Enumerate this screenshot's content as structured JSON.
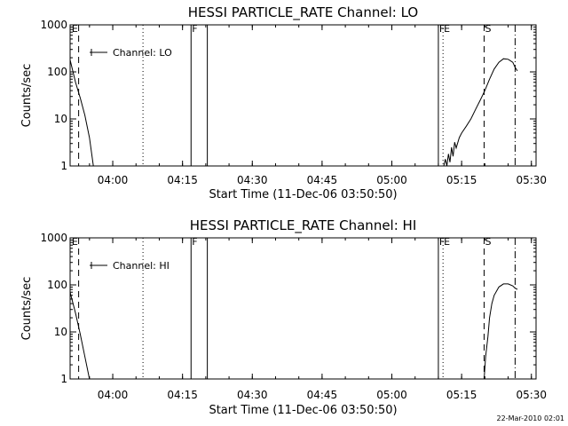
{
  "footer": {
    "date": "22-Mar-2010 02:01"
  },
  "chart_data": [
    {
      "type": "line",
      "title": "HESSI PARTICLE_RATE Channel: LO",
      "xlabel": "Start Time (11-Dec-06 03:50:50)",
      "ylabel": "Counts/sec",
      "yscale": "log",
      "xlim": [
        "03:50:50",
        "05:31:00"
      ],
      "ylim": [
        1,
        1000
      ],
      "xticks": [
        "04:00",
        "04:15",
        "04:30",
        "04:45",
        "05:00",
        "05:15",
        "05:30"
      ],
      "yticks": [
        "1",
        "10",
        "100",
        "1000"
      ],
      "legend": {
        "label": "Channel: LO",
        "placement": "top-left"
      },
      "markers": [
        {
          "time": "03:51:00",
          "style": "text",
          "label": "E"
        },
        {
          "time": "03:52:40",
          "style": "dashed",
          "label": ""
        },
        {
          "time": "04:06:30",
          "style": "dotted",
          "label": ""
        },
        {
          "time": "04:16:50",
          "style": "solid",
          "label": "F"
        },
        {
          "time": "04:20:20",
          "style": "solid",
          "label": ""
        },
        {
          "time": "05:10:00",
          "style": "solid",
          "label": "F"
        },
        {
          "time": "05:11:00",
          "style": "dotted",
          "label": "E"
        },
        {
          "time": "05:19:50",
          "style": "dashed",
          "label": "S"
        },
        {
          "time": "05:26:30",
          "style": "dashdot",
          "label": ""
        }
      ],
      "series": [
        {
          "name": "Channel: LO",
          "segments": [
            [
              [
                "03:50:50",
                180
              ],
              [
                "03:52:00",
                60
              ],
              [
                "03:53:00",
                28
              ],
              [
                "03:54:00",
                12
              ],
              [
                "03:55:00",
                4
              ],
              [
                "03:55:50",
                1
              ]
            ],
            [
              [
                "05:11:10",
                1
              ],
              [
                "05:11:30",
                1.4
              ],
              [
                "05:11:50",
                1
              ],
              [
                "05:12:10",
                1.8
              ],
              [
                "05:12:30",
                1.2
              ],
              [
                "05:12:50",
                2.5
              ],
              [
                "05:13:10",
                1.6
              ],
              [
                "05:13:30",
                3.2
              ],
              [
                "05:13:50",
                2.4
              ],
              [
                "05:14:30",
                4
              ],
              [
                "05:15:00",
                5
              ],
              [
                "05:16:00",
                7
              ],
              [
                "05:17:00",
                10
              ],
              [
                "05:18:00",
                16
              ],
              [
                "05:19:00",
                25
              ],
              [
                "05:20:00",
                40
              ],
              [
                "05:21:00",
                70
              ],
              [
                "05:22:00",
                115
              ],
              [
                "05:23:00",
                160
              ],
              [
                "05:24:00",
                190
              ],
              [
                "05:25:00",
                185
              ],
              [
                "05:26:00",
                160
              ],
              [
                "05:26:30",
                125
              ],
              [
                "05:27:00",
                105
              ]
            ]
          ]
        }
      ]
    },
    {
      "type": "line",
      "title": "HESSI PARTICLE_RATE Channel: HI",
      "xlabel": "Start Time (11-Dec-06 03:50:50)",
      "ylabel": "Counts/sec",
      "yscale": "log",
      "xlim": [
        "03:50:50",
        "05:31:00"
      ],
      "ylim": [
        1,
        1000
      ],
      "xticks": [
        "04:00",
        "04:15",
        "04:30",
        "04:45",
        "05:00",
        "05:15",
        "05:30"
      ],
      "yticks": [
        "1",
        "10",
        "100",
        "1000"
      ],
      "legend": {
        "label": "Channel: HI",
        "placement": "top-left"
      },
      "markers": [
        {
          "time": "03:51:00",
          "style": "text",
          "label": "E"
        },
        {
          "time": "03:52:40",
          "style": "dashed",
          "label": ""
        },
        {
          "time": "04:06:30",
          "style": "dotted",
          "label": ""
        },
        {
          "time": "04:16:50",
          "style": "solid",
          "label": "F"
        },
        {
          "time": "04:20:20",
          "style": "solid",
          "label": ""
        },
        {
          "time": "05:10:00",
          "style": "solid",
          "label": "F"
        },
        {
          "time": "05:11:00",
          "style": "dotted",
          "label": "E"
        },
        {
          "time": "05:19:50",
          "style": "dashed",
          "label": "S"
        },
        {
          "time": "05:26:30",
          "style": "dashdot",
          "label": ""
        }
      ],
      "series": [
        {
          "name": "Channel: HI",
          "segments": [
            [
              [
                "03:50:50",
                70
              ],
              [
                "03:52:00",
                25
              ],
              [
                "03:53:00",
                9
              ],
              [
                "03:54:00",
                3
              ],
              [
                "03:55:00",
                1
              ]
            ],
            [
              [
                "05:19:50",
                1
              ],
              [
                "05:20:10",
                3
              ],
              [
                "05:20:40",
                8
              ],
              [
                "05:21:00",
                20
              ],
              [
                "05:21:30",
                40
              ],
              [
                "05:22:00",
                60
              ],
              [
                "05:23:00",
                90
              ],
              [
                "05:24:00",
                105
              ],
              [
                "05:25:00",
                105
              ],
              [
                "05:26:00",
                95
              ],
              [
                "05:26:30",
                85
              ],
              [
                "05:27:00",
                80
              ]
            ]
          ]
        }
      ]
    }
  ]
}
